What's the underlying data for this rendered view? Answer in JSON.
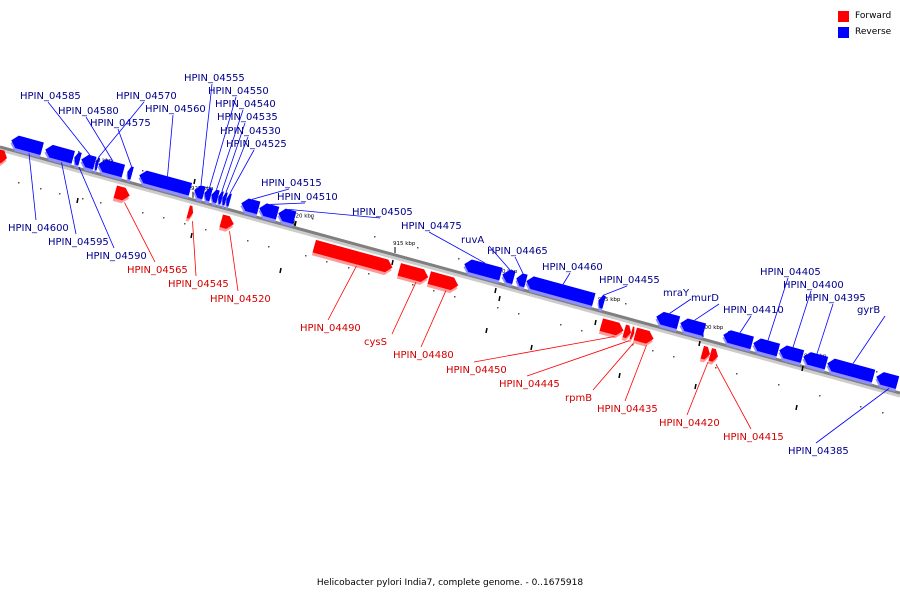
{
  "legend": {
    "forward": {
      "label": "Forward",
      "color": "#ff0000"
    },
    "reverse": {
      "label": "Reverse",
      "color": "#0000ff"
    }
  },
  "caption": "Helicobacter pylori India7, complete genome. - 0..1675918",
  "ticks": [
    "930 kbp",
    "925 kbp",
    "920 kbp",
    "915 kbp",
    "910 kbp",
    "905 kbp",
    "900 kbp",
    "895 kbp"
  ],
  "genes": [
    {
      "name": "",
      "strand": "forward"
    },
    {
      "name": "HPIN_04600",
      "strand": "reverse"
    },
    {
      "name": "HPIN_04595",
      "strand": "reverse"
    },
    {
      "name": "HPIN_04590",
      "strand": "reverse"
    },
    {
      "name": "HPIN_04585",
      "strand": "reverse"
    },
    {
      "name": "HPIN_04580",
      "strand": "reverse"
    },
    {
      "name": "HPIN_04575",
      "strand": "reverse"
    },
    {
      "name": "HPIN_04570",
      "strand": "reverse"
    },
    {
      "name": "HPIN_04565",
      "strand": "forward"
    },
    {
      "name": "HPIN_04560",
      "strand": "reverse"
    },
    {
      "name": "HPIN_04555",
      "strand": "reverse"
    },
    {
      "name": "HPIN_04550",
      "strand": "reverse"
    },
    {
      "name": "HPIN_04545",
      "strand": "forward"
    },
    {
      "name": "HPIN_04540",
      "strand": "reverse"
    },
    {
      "name": "HPIN_04535",
      "strand": "reverse"
    },
    {
      "name": "HPIN_04530",
      "strand": "reverse"
    },
    {
      "name": "HPIN_04525",
      "strand": "reverse"
    },
    {
      "name": "HPIN_04520",
      "strand": "forward"
    },
    {
      "name": "HPIN_04515",
      "strand": "reverse"
    },
    {
      "name": "HPIN_04510",
      "strand": "reverse"
    },
    {
      "name": "HPIN_04505",
      "strand": "reverse"
    },
    {
      "name": "HPIN_04490",
      "strand": "forward"
    },
    {
      "name": "cysS",
      "strand": "forward"
    },
    {
      "name": "HPIN_04480",
      "strand": "forward"
    },
    {
      "name": "HPIN_04475",
      "strand": "reverse"
    },
    {
      "name": "ruvA",
      "strand": "reverse"
    },
    {
      "name": "HPIN_04465",
      "strand": "reverse"
    },
    {
      "name": "HPIN_04460",
      "strand": "reverse"
    },
    {
      "name": "HPIN_04455",
      "strand": "reverse"
    },
    {
      "name": "HPIN_04450",
      "strand": "forward"
    },
    {
      "name": "HPIN_04445",
      "strand": "forward"
    },
    {
      "name": "rpmB",
      "strand": "forward"
    },
    {
      "name": "HPIN_04435",
      "strand": "forward"
    },
    {
      "name": "mraY",
      "strand": "reverse"
    },
    {
      "name": "murD",
      "strand": "reverse"
    },
    {
      "name": "HPIN_04420",
      "strand": "forward"
    },
    {
      "name": "HPIN_04415",
      "strand": "forward"
    },
    {
      "name": "HPIN_04410",
      "strand": "reverse"
    },
    {
      "name": "HPIN_04405",
      "strand": "reverse"
    },
    {
      "name": "HPIN_04400",
      "strand": "reverse"
    },
    {
      "name": "HPIN_04395",
      "strand": "reverse"
    },
    {
      "name": "gyrB",
      "strand": "reverse"
    },
    {
      "name": "HPIN_04385",
      "strand": "reverse"
    }
  ]
}
